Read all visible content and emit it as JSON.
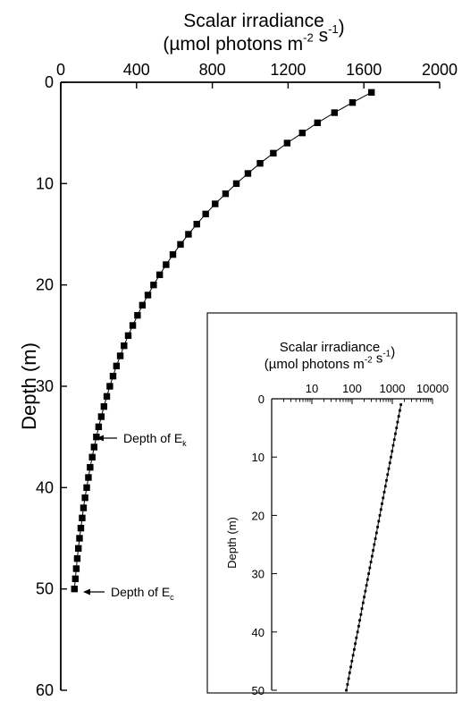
{
  "chart_data": [
    {
      "type": "line",
      "markers": "square",
      "x_axis_position": "top",
      "x_scale": "linear",
      "y_inverted": true,
      "xlabel": "Scalar irradiance",
      "xlabel_units": "(µmol photons m⁻² s⁻¹)",
      "ylabel": "Depth (m)",
      "xlim": [
        0,
        2000
      ],
      "ylim": [
        0,
        60
      ],
      "x_ticks": [
        "0",
        "400",
        "800",
        "1200",
        "1600",
        "2000"
      ],
      "y_ticks": [
        "0",
        "10",
        "20",
        "30",
        "40",
        "50",
        "60"
      ],
      "grid": false,
      "series": [
        {
          "x": [
            1640,
            1540,
            1445,
            1355,
            1275,
            1195,
            1122,
            1052,
            988,
            927,
            870,
            815,
            765,
            718,
            674,
            632,
            592,
            556,
            522,
            490,
            460,
            431,
            405,
            380,
            356,
            334,
            314,
            294,
            276,
            259,
            243,
            228,
            214,
            200,
            188,
            176,
            166,
            155,
            146,
            137,
            128,
            120,
            113,
            106,
            99,
            93,
            87,
            82,
            77,
            72
          ],
          "y": [
            1,
            2,
            3,
            4,
            5,
            6,
            7,
            8,
            9,
            10,
            11,
            12,
            13,
            14,
            15,
            16,
            17,
            18,
            19,
            20,
            21,
            22,
            23,
            24,
            25,
            26,
            27,
            28,
            29,
            30,
            31,
            32,
            33,
            34,
            35,
            36,
            37,
            38,
            39,
            40,
            41,
            42,
            43,
            44,
            45,
            46,
            47,
            48,
            49,
            50
          ]
        }
      ],
      "annotations": [
        {
          "text": "Depth of E",
          "subscript": "k",
          "y": 35
        },
        {
          "text": "Depth of E",
          "subscript": "c",
          "y": 50
        }
      ]
    },
    {
      "type": "line",
      "inset": true,
      "markers": "small-dot",
      "x_axis_position": "top",
      "x_scale": "log",
      "y_inverted": true,
      "xlabel": "Scalar irradiance",
      "xlabel_units": "(µmol photons m⁻² s⁻¹)",
      "ylabel": "Depth (m)",
      "xlim": [
        1,
        10000
      ],
      "ylim": [
        0,
        50
      ],
      "x_ticks": [
        "10",
        "100",
        "1000",
        "10000"
      ],
      "y_ticks": [
        "0",
        "10",
        "20",
        "30",
        "40",
        "50"
      ],
      "grid": false,
      "series": [
        {
          "x": [
            1640,
            1540,
            1445,
            1355,
            1275,
            1195,
            1122,
            1052,
            988,
            927,
            870,
            815,
            765,
            718,
            674,
            632,
            592,
            556,
            522,
            490,
            460,
            431,
            405,
            380,
            356,
            334,
            314,
            294,
            276,
            259,
            243,
            228,
            214,
            200,
            188,
            176,
            166,
            155,
            146,
            137,
            128,
            120,
            113,
            106,
            99,
            93,
            87,
            82,
            77,
            72
          ],
          "y": [
            1,
            2,
            3,
            4,
            5,
            6,
            7,
            8,
            9,
            10,
            11,
            12,
            13,
            14,
            15,
            16,
            17,
            18,
            19,
            20,
            21,
            22,
            23,
            24,
            25,
            26,
            27,
            28,
            29,
            30,
            31,
            32,
            33,
            34,
            35,
            36,
            37,
            38,
            39,
            40,
            41,
            42,
            43,
            44,
            45,
            46,
            47,
            48,
            49,
            50
          ]
        }
      ]
    }
  ]
}
